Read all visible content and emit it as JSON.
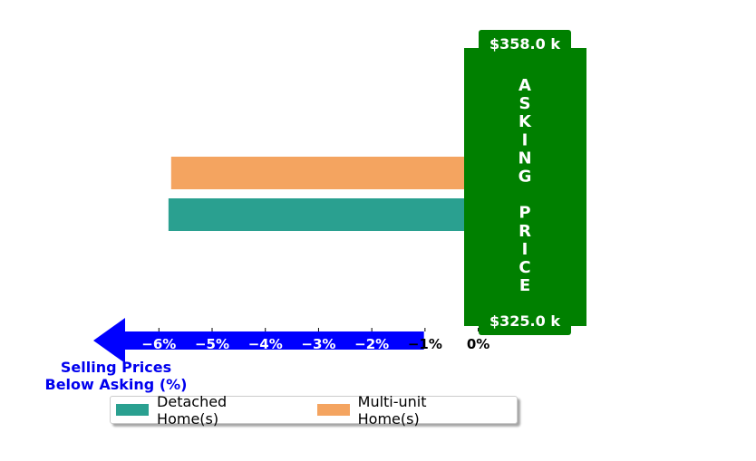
{
  "chart_data": {
    "type": "bar",
    "orientation": "horizontal",
    "series": [
      {
        "name": "Detached Home(s)",
        "value": -5.82,
        "color": "#2aa090"
      },
      {
        "name": "Multi-unit Home(s)",
        "value": -5.77,
        "color": "#f4a460"
      }
    ],
    "xlim": [
      -7.01,
      2.0
    ],
    "x_ticks": [
      -6,
      -5,
      -4,
      -3,
      -2,
      -1,
      0
    ],
    "x_tick_labels": [
      "−6%",
      "−5%",
      "−4%",
      "−3%",
      "−2%",
      "−1%",
      "0%"
    ],
    "xlabel": "Selling Prices\nBelow Asking (%)",
    "xlabel_color": "#0000ee",
    "axis_arrow_color": "#0000ff",
    "asking_price_box": {
      "label_letters": [
        "A",
        "S",
        "K",
        "I",
        "N",
        "G",
        "",
        "P",
        "R",
        "I",
        "C",
        "E"
      ],
      "top_price": "$358.0 k",
      "bottom_price": "$325.0 k",
      "color": "#008000"
    },
    "legend": {
      "placement": "bottom-center",
      "columns": 2
    },
    "grid": false
  }
}
